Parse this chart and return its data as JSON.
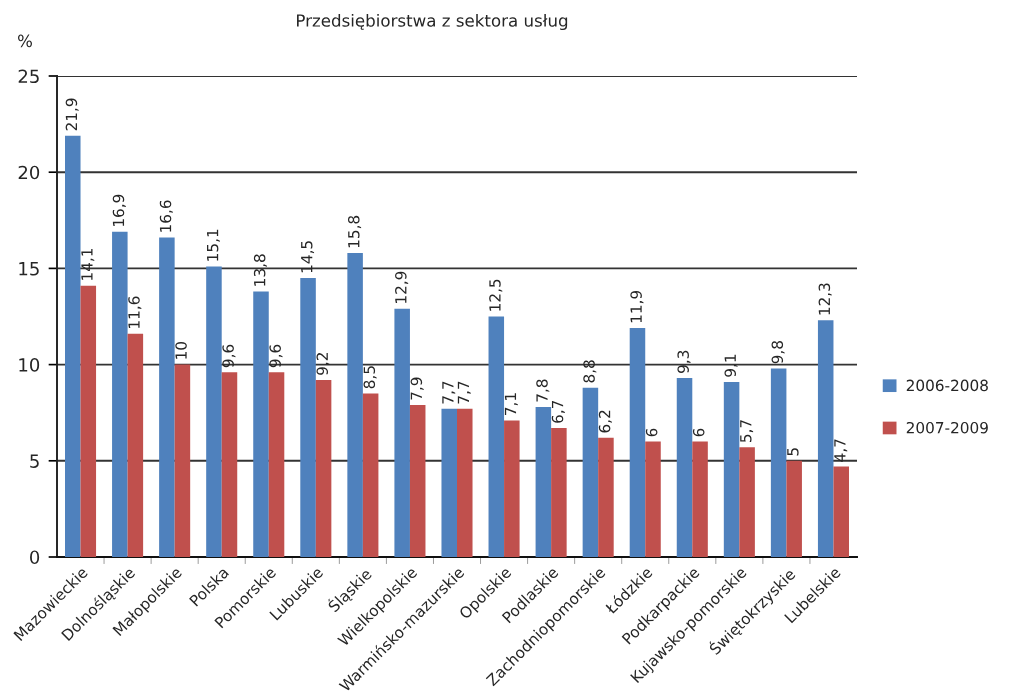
{
  "chart_data": {
    "type": "bar",
    "title": "Przedsiębiorstwa z sektora usług",
    "ylabel": "%",
    "categories": [
      "Mazowieckie",
      "Dolnośląskie",
      "Małopolskie",
      "Polska",
      "Pomorskie",
      "Lubuskie",
      "Śląskie",
      "Wielkopolskie",
      "Warmińsko-mazurskie",
      "Opolskie",
      "Podlaskie",
      "Zachodniopomorskie",
      "Łódzkie",
      "Podkarpackie",
      "Kujawsko-pomorskie",
      "Świętokrzyskie",
      "Lubelskie"
    ],
    "series": [
      {
        "name": "2006-2008",
        "color": "#4f81bd",
        "values": [
          21.9,
          16.9,
          16.6,
          15.1,
          13.8,
          14.5,
          15.8,
          12.9,
          7.7,
          12.5,
          7.8,
          8.8,
          11.9,
          9.3,
          9.1,
          9.8,
          12.3
        ],
        "value_labels": [
          "21,9",
          "16,9",
          "16,6",
          "15,1",
          "13,8",
          "14,5",
          "15,8",
          "12,9",
          "7,7",
          "12,5",
          "7,8",
          "8,8",
          "11,9",
          "9,3",
          "9,1",
          "9,8",
          "12,3"
        ]
      },
      {
        "name": "2007-2009",
        "color": "#c0504d",
        "values": [
          14.1,
          11.6,
          10,
          9.6,
          9.6,
          9.2,
          8.5,
          7.9,
          7.7,
          7.1,
          6.7,
          6.2,
          6,
          6,
          5.7,
          5,
          4.7
        ],
        "value_labels": [
          "14,1",
          "11,6",
          "10",
          "9,6",
          "9,6",
          "9,2",
          "8,5",
          "7,9",
          "7,7",
          "7,1",
          "6,7",
          "6,2",
          "6",
          "6",
          "5,7",
          "5",
          "4,7"
        ]
      }
    ],
    "ylim": [
      0,
      25
    ],
    "yticks": [
      0,
      5,
      10,
      15,
      20,
      25
    ],
    "grid": "y",
    "legend": "right"
  }
}
